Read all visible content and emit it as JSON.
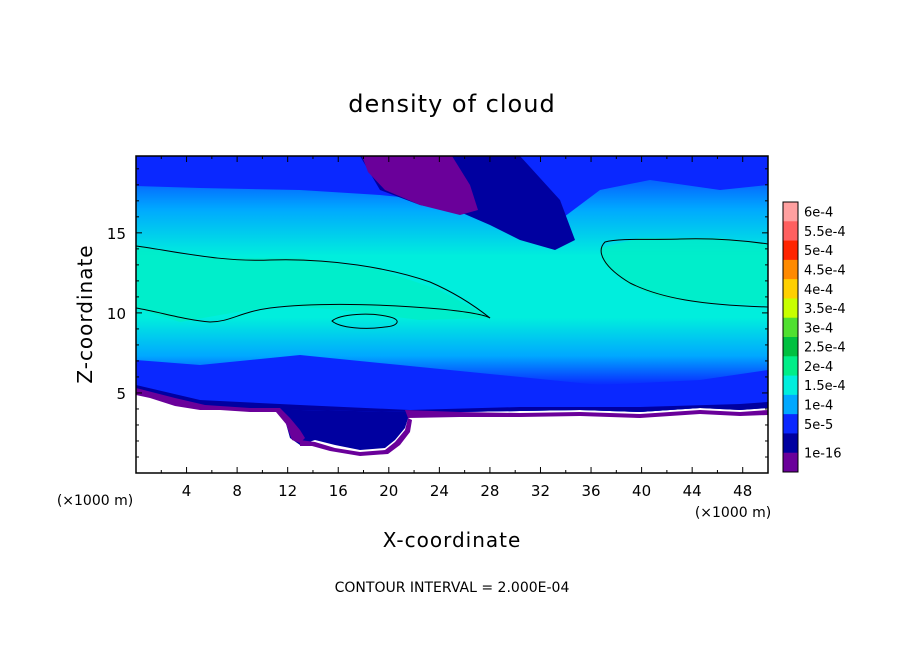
{
  "chart_data": {
    "type": "heatmap",
    "title": "density of cloud",
    "xlabel": "X-coordinate",
    "ylabel": "Z-coordinate",
    "x_unit_left": "(×1000 m)",
    "x_unit_right": "(×1000 m)",
    "xlim": [
      0,
      50
    ],
    "ylim": [
      0,
      19.8
    ],
    "x_ticks": [
      "4",
      "8",
      "12",
      "16",
      "20",
      "24",
      "28",
      "32",
      "36",
      "40",
      "44",
      "48"
    ],
    "x_tick_values": [
      4,
      8,
      12,
      16,
      20,
      24,
      28,
      32,
      36,
      40,
      44,
      48
    ],
    "y_ticks": [
      "5",
      "10",
      "15"
    ],
    "y_tick_values": [
      5,
      10,
      15
    ],
    "colorbar": {
      "labels": [
        "6e-4",
        "5.5e-4",
        "5e-4",
        "4.5e-4",
        "4e-4",
        "3.5e-4",
        "3e-4",
        "2.5e-4",
        "2e-4",
        "1.5e-4",
        "1e-4",
        "5e-5",
        "1e-16"
      ],
      "colors": [
        "#ffa0a0",
        "#ff6060",
        "#ff2400",
        "#ff8a00",
        "#ffd000",
        "#c8ff00",
        "#50e030",
        "#00c040",
        "#00ee88",
        "#00eedd",
        "#00a8ff",
        "#0a28ff",
        "#0000a0",
        "#6a009a"
      ]
    },
    "contour_interval_text": "CONTOUR INTERVAL = 2.000E-04",
    "contour_level": 0.0002,
    "field": {
      "ground_height": 4.5,
      "cloud_base": [
        [
          0,
          5.4
        ],
        [
          4,
          5.0
        ],
        [
          8,
          4.4
        ],
        [
          12,
          2.0
        ],
        [
          16,
          1.5
        ],
        [
          20,
          2.0
        ],
        [
          22,
          4.3
        ],
        [
          26,
          4.2
        ],
        [
          32,
          4.0
        ],
        [
          38,
          4.3
        ],
        [
          44,
          4.4
        ],
        [
          50,
          4.3
        ]
      ],
      "regions": [
        {
          "level": "1e-16",
          "x": [
            0,
            50
          ],
          "z": [
            4.2,
            5.3
          ]
        },
        {
          "level": "5e-5",
          "x": [
            0,
            50
          ],
          "z": [
            4.8,
            6.0
          ]
        },
        {
          "level": "1e-4",
          "x": [
            0,
            50
          ],
          "z": [
            5.5,
            8.0
          ]
        },
        {
          "level": "1.5e-4",
          "x": [
            0,
            50
          ],
          "z": [
            7.0,
            18.0
          ]
        },
        {
          "level": "2e-4",
          "x": [
            0,
            28
          ],
          "z": [
            9.5,
            14.3
          ]
        },
        {
          "level": "2e-4",
          "x": [
            36,
            50
          ],
          "z": [
            10.5,
            14.8
          ]
        },
        {
          "level": "1e-16",
          "x": [
            17,
            24
          ],
          "z": [
            16.0,
            19.8
          ]
        }
      ]
    }
  }
}
